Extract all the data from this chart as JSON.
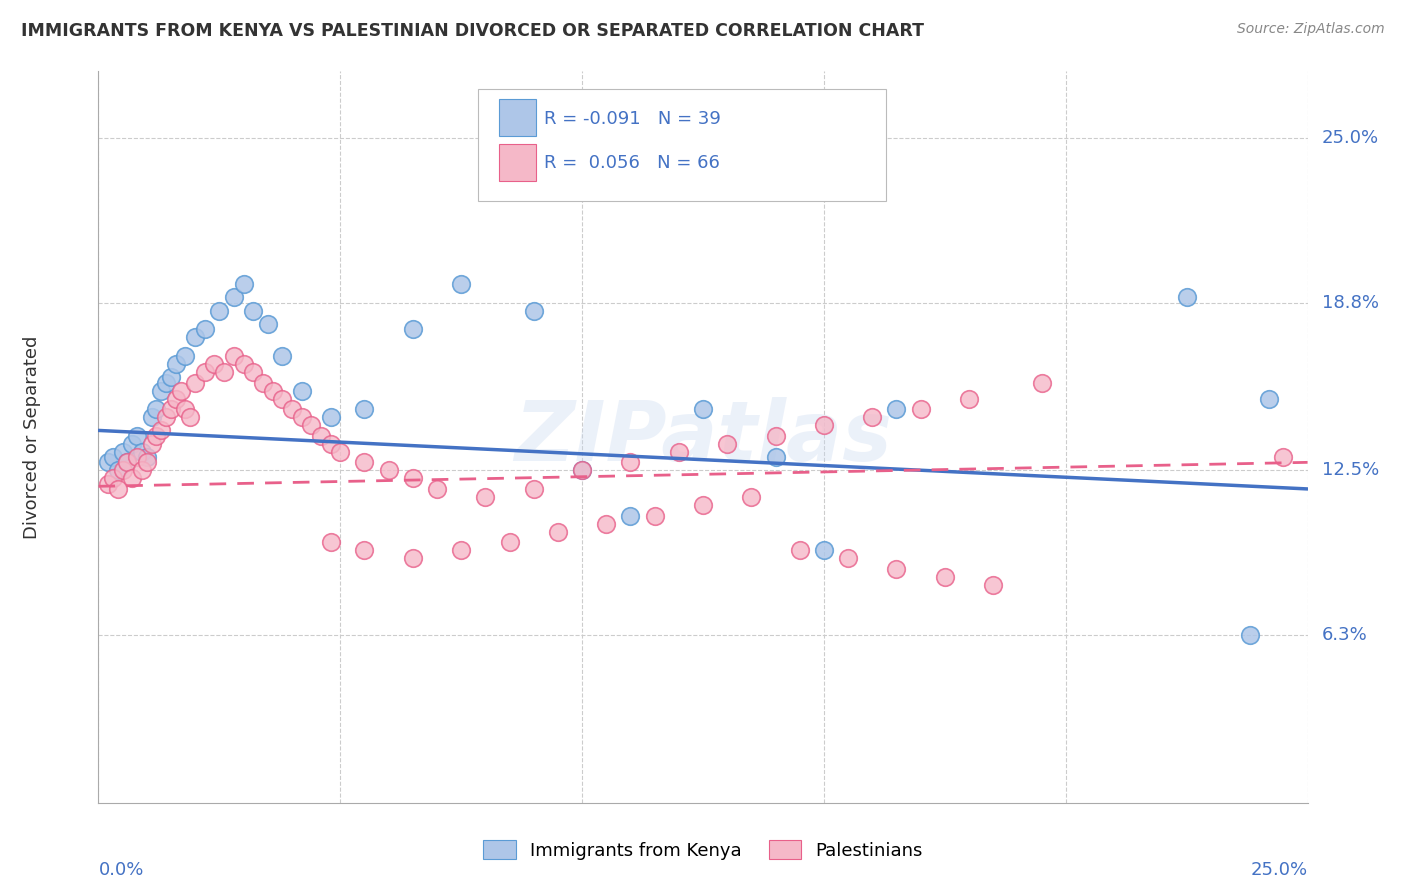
{
  "title": "IMMIGRANTS FROM KENYA VS PALESTINIAN DIVORCED OR SEPARATED CORRELATION CHART",
  "source": "Source: ZipAtlas.com",
  "ylabel": "Divorced or Separated",
  "ytick_labels": [
    "6.3%",
    "12.5%",
    "18.8%",
    "25.0%"
  ],
  "ytick_values": [
    0.063,
    0.125,
    0.188,
    0.25
  ],
  "xtick_labels": [
    "0.0%",
    "25.0%"
  ],
  "xlim": [
    0.0,
    0.25
  ],
  "ylim": [
    0.0,
    0.275
  ],
  "legend_label1": "Immigrants from Kenya",
  "legend_label2": "Palestinians",
  "R1": "-0.091",
  "N1": "39",
  "R2": "0.056",
  "N2": "66",
  "color_blue": "#aec6e8",
  "color_pink": "#f5b8c8",
  "edge_blue": "#5b9bd5",
  "edge_pink": "#e8608a",
  "line_blue": "#4472c4",
  "line_pink": "#e8608a",
  "text_blue": "#4472c4",
  "watermark": "ZIPatlas",
  "blue_dots_x": [
    0.002,
    0.003,
    0.004,
    0.005,
    0.006,
    0.007,
    0.008,
    0.009,
    0.01,
    0.011,
    0.012,
    0.013,
    0.014,
    0.015,
    0.016,
    0.018,
    0.02,
    0.022,
    0.025,
    0.028,
    0.03,
    0.032,
    0.035,
    0.038,
    0.042,
    0.048,
    0.055,
    0.065,
    0.075,
    0.09,
    0.1,
    0.11,
    0.125,
    0.14,
    0.15,
    0.165,
    0.225,
    0.238,
    0.242
  ],
  "blue_dots_y": [
    0.128,
    0.13,
    0.125,
    0.132,
    0.128,
    0.135,
    0.138,
    0.132,
    0.13,
    0.145,
    0.148,
    0.155,
    0.158,
    0.16,
    0.165,
    0.168,
    0.175,
    0.178,
    0.185,
    0.19,
    0.195,
    0.185,
    0.18,
    0.168,
    0.155,
    0.145,
    0.148,
    0.178,
    0.195,
    0.185,
    0.125,
    0.108,
    0.148,
    0.13,
    0.095,
    0.148,
    0.19,
    0.063,
    0.152
  ],
  "pink_dots_x": [
    0.002,
    0.003,
    0.004,
    0.005,
    0.006,
    0.007,
    0.008,
    0.009,
    0.01,
    0.011,
    0.012,
    0.013,
    0.014,
    0.015,
    0.016,
    0.017,
    0.018,
    0.019,
    0.02,
    0.022,
    0.024,
    0.026,
    0.028,
    0.03,
    0.032,
    0.034,
    0.036,
    0.038,
    0.04,
    0.042,
    0.044,
    0.046,
    0.048,
    0.05,
    0.055,
    0.06,
    0.065,
    0.07,
    0.08,
    0.09,
    0.1,
    0.11,
    0.12,
    0.13,
    0.14,
    0.15,
    0.16,
    0.17,
    0.18,
    0.195,
    0.048,
    0.055,
    0.065,
    0.075,
    0.085,
    0.095,
    0.105,
    0.115,
    0.125,
    0.135,
    0.145,
    0.155,
    0.165,
    0.175,
    0.185,
    0.245
  ],
  "pink_dots_y": [
    0.12,
    0.122,
    0.118,
    0.125,
    0.128,
    0.122,
    0.13,
    0.125,
    0.128,
    0.135,
    0.138,
    0.14,
    0.145,
    0.148,
    0.152,
    0.155,
    0.148,
    0.145,
    0.158,
    0.162,
    0.165,
    0.162,
    0.168,
    0.165,
    0.162,
    0.158,
    0.155,
    0.152,
    0.148,
    0.145,
    0.142,
    0.138,
    0.135,
    0.132,
    0.128,
    0.125,
    0.122,
    0.118,
    0.115,
    0.118,
    0.125,
    0.128,
    0.132,
    0.135,
    0.138,
    0.142,
    0.145,
    0.148,
    0.152,
    0.158,
    0.098,
    0.095,
    0.092,
    0.095,
    0.098,
    0.102,
    0.105,
    0.108,
    0.112,
    0.115,
    0.095,
    0.092,
    0.088,
    0.085,
    0.082,
    0.13
  ]
}
